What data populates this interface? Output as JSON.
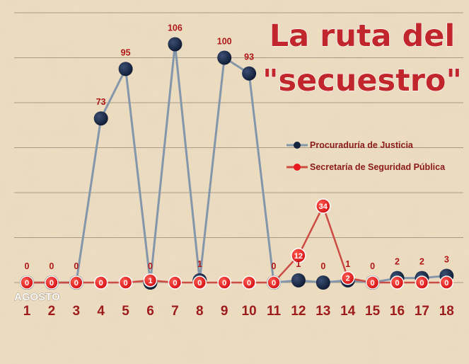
{
  "chart_data": {
    "type": "line",
    "title_lines": [
      "La ruta del",
      "\"secuestro\""
    ],
    "xlabel": "",
    "ylabel": "",
    "month_label": "AGOSTO",
    "categories": [
      "1",
      "2",
      "3",
      "4",
      "5",
      "6",
      "7",
      "8",
      "9",
      "10",
      "11",
      "12",
      "13",
      "14",
      "15",
      "16",
      "17",
      "18"
    ],
    "ylim": [
      0,
      120
    ],
    "y_gridlines": [
      0,
      20,
      40,
      60,
      80,
      100,
      120
    ],
    "grid": true,
    "legend_position": "right",
    "series": [
      {
        "name": "Procuraduría de Justicia",
        "color": "#8496aa",
        "marker_color": "#15233f",
        "values": [
          0,
          0,
          0,
          73,
          95,
          0,
          106,
          1,
          100,
          93,
          0,
          1,
          0,
          1,
          0,
          2,
          2,
          3
        ],
        "labels": [
          "0",
          "0",
          "0",
          "73",
          "95",
          "0",
          "106",
          "1",
          "100",
          "93",
          "0",
          "1",
          "0",
          "1",
          "0",
          "2",
          "2",
          "3"
        ]
      },
      {
        "name": "Secretaría de Seguridad Pública",
        "color": "#cc4b44",
        "marker_color": "#e8181c",
        "values": [
          0,
          0,
          0,
          0,
          0,
          1,
          0,
          0,
          0,
          0,
          0,
          12,
          34,
          2,
          0,
          0,
          0,
          0
        ],
        "labels": [
          "0",
          "0",
          "0",
          "0",
          "0",
          "1",
          "0",
          "0",
          "0",
          "0",
          "0",
          "12",
          "34",
          "2",
          "0",
          "0",
          "0",
          "0"
        ]
      }
    ]
  },
  "colors": {
    "background": "#ecdcc0",
    "gridline": "#7a6a58",
    "title": "#c0262b",
    "legend_text": "#8b1a1a",
    "tick_text": "#9e1b1b"
  }
}
